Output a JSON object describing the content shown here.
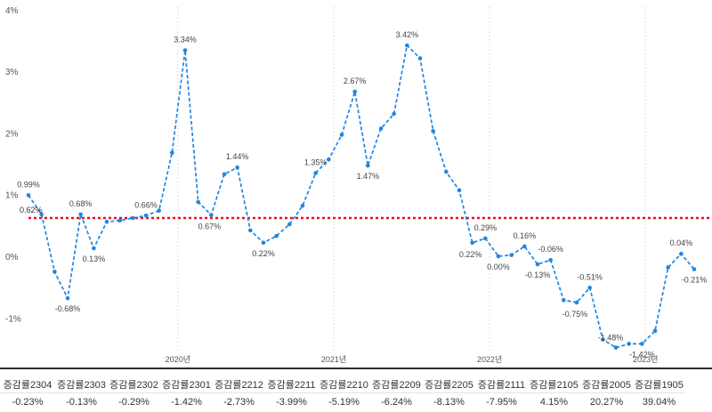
{
  "chart_data": {
    "type": "line",
    "y_ticks": [
      "4%",
      "3%",
      "2%",
      "1%",
      "0%",
      "-1%"
    ],
    "y_tick_values": [
      4,
      3,
      2,
      1,
      0,
      -1
    ],
    "ylim": [
      -1.55,
      4.1
    ],
    "x_axis": {
      "domain": [
        0,
        51.8
      ],
      "ticks": [
        {
          "label": "2020년",
          "pos": 11.5
        },
        {
          "label": "2021년",
          "pos": 23.5
        },
        {
          "label": "2022년",
          "pos": 35.5
        },
        {
          "label": "2023년",
          "pos": 47.5
        }
      ]
    },
    "average_line": {
      "value": 0.62,
      "label": "0.62%",
      "color": "#e8121c"
    },
    "series": [
      {
        "name": "증감률",
        "color": "#2185e0",
        "values": [
          0.99,
          0.68,
          -0.25,
          -0.68,
          0.68,
          0.13,
          0.56,
          0.58,
          0.62,
          0.66,
          0.74,
          1.68,
          3.34,
          0.88,
          0.67,
          1.33,
          1.44,
          0.42,
          0.22,
          0.33,
          0.52,
          0.82,
          1.35,
          1.57,
          1.97,
          2.67,
          1.47,
          2.07,
          2.31,
          3.42,
          3.21,
          2.03,
          1.37,
          1.07,
          0.22,
          0.29,
          0.0,
          0.02,
          0.16,
          -0.13,
          -0.06,
          -0.71,
          -0.75,
          -0.51,
          -1.35,
          -1.48,
          -1.42,
          -1.42,
          -1.21,
          -0.18,
          0.04,
          -0.21
        ],
        "data_labels": [
          {
            "index": 0,
            "text": "0.99%",
            "pos": "above"
          },
          {
            "index": 3,
            "text": "-0.68%",
            "pos": "below"
          },
          {
            "index": 4,
            "text": "0.68%",
            "pos": "above"
          },
          {
            "index": 5,
            "text": "0.13%",
            "pos": "below"
          },
          {
            "index": 9,
            "text": "0.66%",
            "pos": "above"
          },
          {
            "index": 12,
            "text": "3.34%",
            "pos": "above"
          },
          {
            "index": 14,
            "text": "0.67%",
            "pos": "below-left"
          },
          {
            "index": 16,
            "text": "1.44%",
            "pos": "above"
          },
          {
            "index": 18,
            "text": "0.22%",
            "pos": "below"
          },
          {
            "index": 22,
            "text": "1.35%",
            "pos": "above"
          },
          {
            "index": 25,
            "text": "2.67%",
            "pos": "above"
          },
          {
            "index": 26,
            "text": "1.47%",
            "pos": "below"
          },
          {
            "index": 29,
            "text": "3.42%",
            "pos": "above"
          },
          {
            "index": 34,
            "text": "0.22%",
            "pos": "below-left"
          },
          {
            "index": 35,
            "text": "0.29%",
            "pos": "above"
          },
          {
            "index": 36,
            "text": "0.00%",
            "pos": "below"
          },
          {
            "index": 38,
            "text": "0.16%",
            "pos": "above"
          },
          {
            "index": 39,
            "text": "-0.13%",
            "pos": "below"
          },
          {
            "index": 40,
            "text": "-0.06%",
            "pos": "above"
          },
          {
            "index": 42,
            "text": "-0.75%",
            "pos": "below-left"
          },
          {
            "index": 43,
            "text": "-0.51%",
            "pos": "above"
          },
          {
            "index": 45,
            "text": "-1.48%",
            "pos": "above-left"
          },
          {
            "index": 47,
            "text": "-1.42%",
            "pos": "below"
          },
          {
            "index": 50,
            "text": "0.04%",
            "pos": "above"
          },
          {
            "index": 51,
            "text": "-0.21%",
            "pos": "below"
          }
        ]
      }
    ]
  },
  "footer_table": {
    "labels": [
      "증감률2304",
      "증감률2303",
      "증감률2302",
      "증감률2301",
      "증감률2212",
      "증감률2211",
      "증감률2210",
      "증감률2209",
      "증감률2205",
      "증감률2111",
      "증감률2105",
      "증감률2005",
      "증감률1905"
    ],
    "values": [
      "-0.23%",
      "-0.13%",
      "-0.29%",
      "-1.42%",
      "-2.73%",
      "-3.99%",
      "-5.19%",
      "-6.24%",
      "-8.13%",
      "-7.95%",
      "4.15%",
      "20.27%",
      "39.04%"
    ]
  }
}
